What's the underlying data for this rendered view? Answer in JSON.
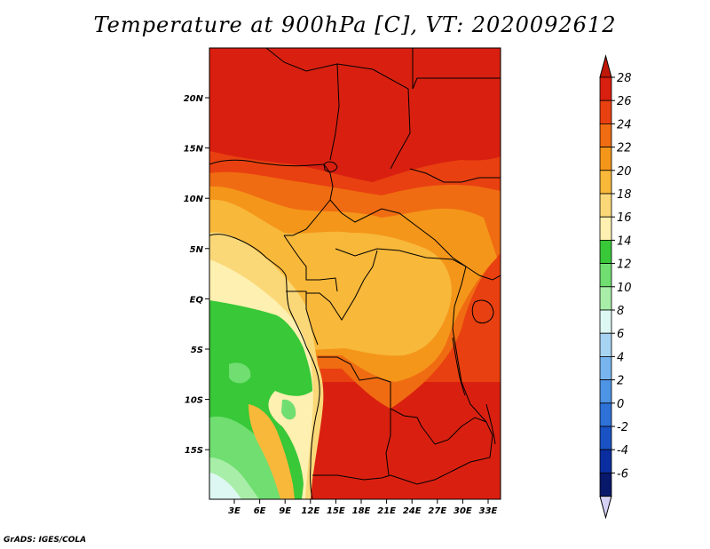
{
  "title": "Temperature at 900hPa [C], VT: 2020092612",
  "credit": "GrADS: IGES/COLA",
  "map": {
    "lat_ticks": [
      "20N",
      "15N",
      "10N",
      "5N",
      "EQ",
      "5S",
      "10S",
      "15S"
    ],
    "lon_ticks": [
      "3E",
      "6E",
      "9E",
      "12E",
      "15E",
      "18E",
      "21E",
      "24E",
      "27E",
      "30E",
      "33E"
    ]
  },
  "colorbar": {
    "labels": [
      "28",
      "26",
      "24",
      "22",
      "20",
      "18",
      "16",
      "14",
      "12",
      "10",
      "8",
      "6",
      "4",
      "2",
      "0",
      "-2",
      "-4",
      "-6"
    ],
    "colors": [
      "#d92010",
      "#e84010",
      "#f06c12",
      "#f4961a",
      "#f8b83a",
      "#fad878",
      "#fef0b0",
      "#38c838",
      "#70de70",
      "#a8eea8",
      "#ddf8f2",
      "#a8d4f4",
      "#78b4ee",
      "#4e94e4",
      "#2e72d8",
      "#1a52c4",
      "#0a2ea0",
      "#08186a"
    ],
    "top_cap_color": "#c01808",
    "bottom_cap_color": "#d6d2f6"
  }
}
